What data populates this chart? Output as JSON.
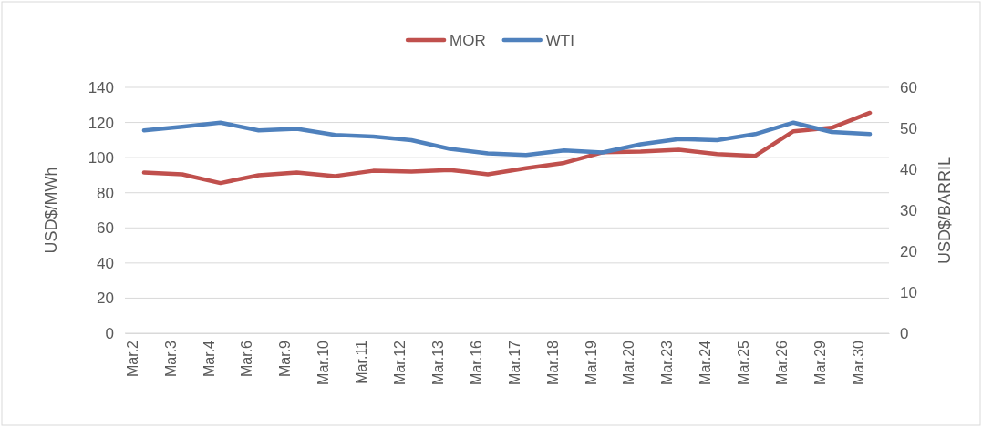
{
  "chart_data": {
    "type": "line",
    "categories": [
      "Mar.2",
      "Mar.3",
      "Mar.4",
      "Mar.6",
      "Mar.9",
      "Mar.10",
      "Mar.11",
      "Mar.12",
      "Mar.13",
      "Mar.16",
      "Mar.17",
      "Mar.18",
      "Mar.19",
      "Mar.20",
      "Mar.23",
      "Mar.24",
      "Mar.25",
      "Mar.26",
      "Mar.29",
      "Mar.30"
    ],
    "series": [
      {
        "name": "MOR",
        "color": "#c0504d",
        "values": [
          91.5,
          90.5,
          85.5,
          90,
          91.5,
          89.5,
          92.5,
          92,
          93,
          90.5,
          94,
          97,
          103,
          103.5,
          104.5,
          102,
          101,
          115,
          117,
          125.5
        ]
      },
      {
        "name": "WTI",
        "color": "#4f81bd",
        "axis": "y2",
        "values": [
          49.5,
          50.4,
          51.4,
          49.5,
          49.9,
          48.4,
          48.0,
          47.1,
          45.0,
          43.9,
          43.5,
          44.6,
          44.1,
          46.1,
          47.4,
          47.1,
          48.6,
          51.4,
          49.1,
          48.6
        ]
      }
    ],
    "ylabel": "USD$/MWh",
    "y2label": "USD$/BARRIL",
    "ylim": [
      0,
      140
    ],
    "yticks": [
      0,
      20,
      40,
      60,
      80,
      100,
      120,
      140
    ],
    "y2lim": [
      0,
      60
    ],
    "y2ticks": [
      0,
      10,
      20,
      30,
      40,
      50,
      60
    ],
    "grid": "y",
    "legend": "top",
    "marker": "none",
    "line_style": "solid"
  }
}
